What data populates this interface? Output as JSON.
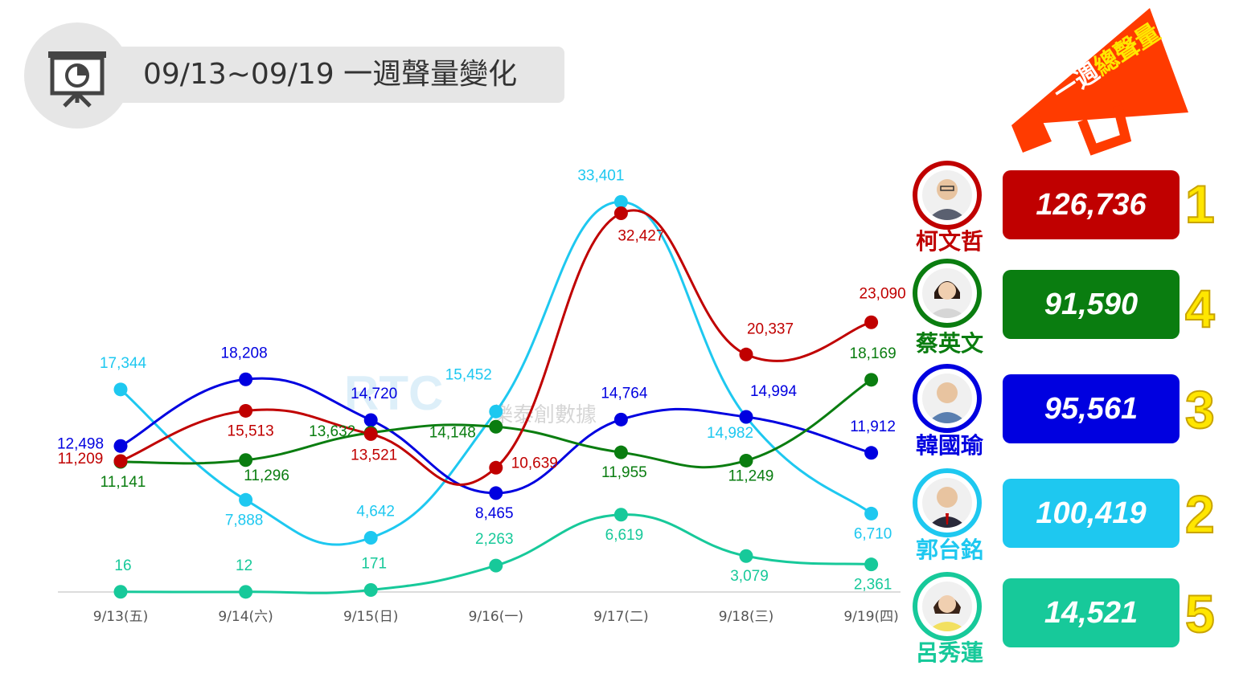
{
  "header": {
    "title": "09/13~09/19 一週聲量變化"
  },
  "watermark": {
    "logo": "RTC",
    "text": "樂泰創數據"
  },
  "megaphone": {
    "text_a": "一週",
    "text_b": "總聲量"
  },
  "chart_data": {
    "type": "line",
    "categories": [
      "9/13(五)",
      "9/14(六)",
      "9/15(日)",
      "9/16(一)",
      "9/17(二)",
      "9/18(三)",
      "9/19(四)"
    ],
    "ylim": [
      0,
      36000
    ],
    "grid": false,
    "series": [
      {
        "name": "郭台銘",
        "color": "#1ec8f0",
        "values": [
          17344,
          7888,
          4642,
          15452,
          33401,
          14982,
          6710
        ]
      },
      {
        "name": "呂秀蓮",
        "color": "#17c99a",
        "values": [
          16,
          12,
          171,
          2263,
          6619,
          3079,
          2361
        ]
      },
      {
        "name": "韓國瑜",
        "color": "#0000e0",
        "values": [
          12498,
          18208,
          14720,
          8465,
          14764,
          14994,
          11912
        ]
      },
      {
        "name": "蔡英文",
        "color": "#0a7d10",
        "values": [
          11141,
          11296,
          13632,
          14148,
          11955,
          11249,
          18169
        ]
      },
      {
        "name": "柯文哲",
        "color": "#c00000",
        "values": [
          11209,
          15513,
          13521,
          10639,
          32427,
          20337,
          23090
        ]
      }
    ],
    "labels": {
      "郭台銘": [
        "17,344",
        "7,888",
        "4,642",
        "15,452",
        "33,401",
        "14,982",
        "6,710"
      ],
      "呂秀蓮": [
        "16",
        "12",
        "171",
        "2,263",
        "6,619",
        "3,079",
        "2,361"
      ],
      "韓國瑜": [
        "12,498",
        "18,208",
        "14,720",
        "8,465",
        "14,764",
        "14,994",
        "11,912"
      ],
      "蔡英文": [
        "11,141",
        "11,296",
        "13,632",
        "14,148",
        "11,955",
        "11,249",
        "18,169"
      ],
      "柯文哲": [
        "11,209",
        "15,513",
        "13,521",
        "10,639",
        "32,427",
        "20,337",
        "23,090"
      ]
    }
  },
  "totals": [
    {
      "name": "柯文哲",
      "total": "126,736",
      "rank": "1",
      "color": "#c00000"
    },
    {
      "name": "蔡英文",
      "total": "91,590",
      "rank": "4",
      "color": "#0a7d10"
    },
    {
      "name": "韓國瑜",
      "total": "95,561",
      "rank": "3",
      "color": "#0000e0"
    },
    {
      "name": "郭台銘",
      "total": "100,419",
      "rank": "2",
      "color": "#1ec8f0"
    },
    {
      "name": "呂秀蓮",
      "total": "14,521",
      "rank": "5",
      "color": "#17c99a"
    }
  ]
}
